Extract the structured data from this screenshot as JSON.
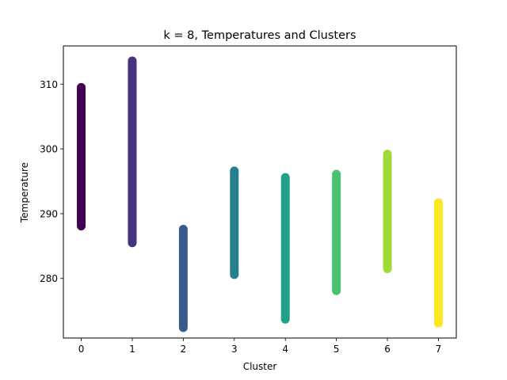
{
  "chart_data": {
    "type": "scatter",
    "title": "k = 8, Temperatures and Clusters",
    "xlabel": "Cluster",
    "ylabel": "Temperature",
    "xlim": [
      -0.35,
      7.35
    ],
    "ylim": [
      270.8,
      315.9
    ],
    "xticks": [
      0,
      1,
      2,
      3,
      4,
      5,
      6,
      7
    ],
    "yticks": [
      280,
      290,
      300,
      310
    ],
    "grid": false,
    "legend": "none",
    "colormap": "viridis",
    "series": [
      {
        "cluster": 0,
        "min": 288.1,
        "max": 309.5,
        "color": "#440154"
      },
      {
        "cluster": 1,
        "min": 285.5,
        "max": 313.6,
        "color": "#46327e"
      },
      {
        "cluster": 2,
        "min": 272.4,
        "max": 287.6,
        "color": "#365c8d"
      },
      {
        "cluster": 3,
        "min": 280.6,
        "max": 296.6,
        "color": "#277f8e"
      },
      {
        "cluster": 4,
        "min": 273.7,
        "max": 295.6,
        "color": "#1fa187"
      },
      {
        "cluster": 5,
        "min": 278.1,
        "max": 296.1,
        "color": "#4ac16d"
      },
      {
        "cluster": 6,
        "min": 281.5,
        "max": 299.2,
        "color": "#a0da39"
      },
      {
        "cluster": 7,
        "min": 273.1,
        "max": 291.7,
        "color": "#fde725"
      }
    ]
  }
}
